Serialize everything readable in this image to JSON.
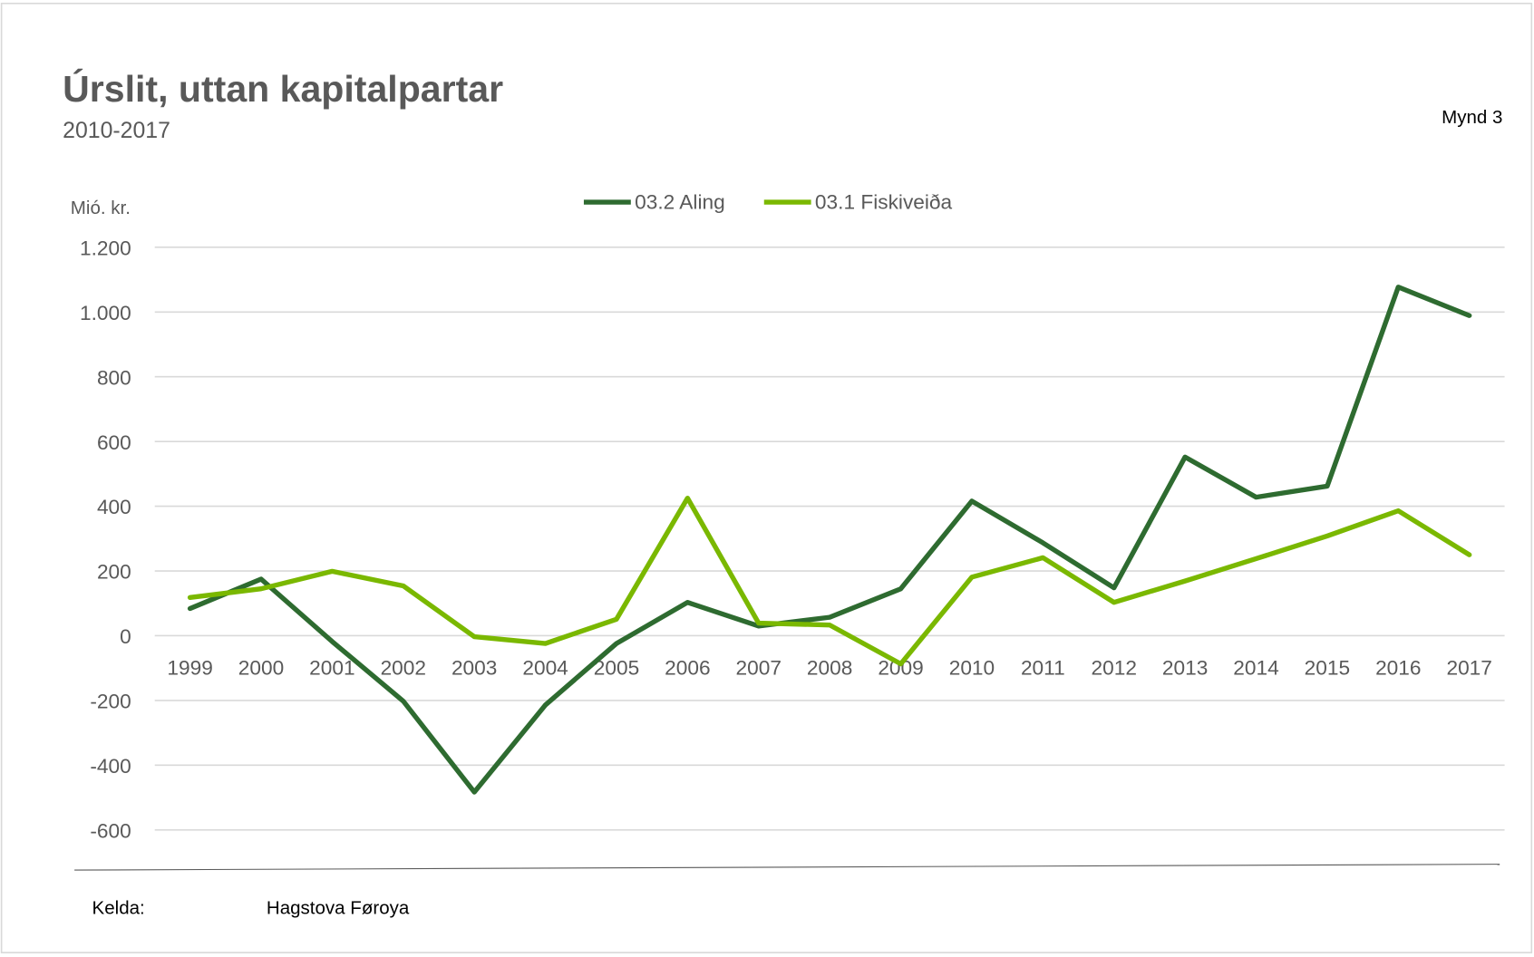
{
  "header": {
    "title": "Úrslit, uttan kapitalpartar",
    "subtitle": "2010-2017",
    "figure_label": "Mynd 3"
  },
  "footer": {
    "source_label": "Kelda:",
    "source_value": "Hagstova Føroya"
  },
  "chart_data": {
    "type": "line",
    "title": "Úrslit, uttan kapitalpartar",
    "subtitle": "2010-2017",
    "ylabel": "Mió. kr.",
    "xlabel": "",
    "ylim": [
      -600,
      1200
    ],
    "yticks": [
      1200,
      1000,
      800,
      600,
      400,
      200,
      0,
      -200,
      -400,
      -600
    ],
    "ytick_labels": [
      "1.200",
      "1.000",
      "800",
      "600",
      "400",
      "200",
      "0",
      "-200",
      "-400",
      "-600"
    ],
    "grid": true,
    "legend_position": "top-center",
    "categories": [
      "1999",
      "2000",
      "2001",
      "2002",
      "2003",
      "2004",
      "2005",
      "2006",
      "2007",
      "2008",
      "2009",
      "2010",
      "2011",
      "2012",
      "2013",
      "2014",
      "2015",
      "2016",
      "2017"
    ],
    "series": [
      {
        "name": "03.2 Aling",
        "color": "#2e6b30",
        "values": [
          84,
          175,
          -18,
          -202,
          -483,
          -214,
          -24,
          103,
          30,
          57,
          145,
          416,
          287,
          148,
          552,
          428,
          462,
          1077,
          989
        ]
      },
      {
        "name": "03.1 Fiskiveiða",
        "color": "#7ab800",
        "values": [
          118,
          145,
          199,
          154,
          -3,
          -24,
          51,
          425,
          39,
          33,
          -87,
          181,
          241,
          103,
          169,
          238,
          308,
          386,
          250
        ]
      }
    ]
  }
}
